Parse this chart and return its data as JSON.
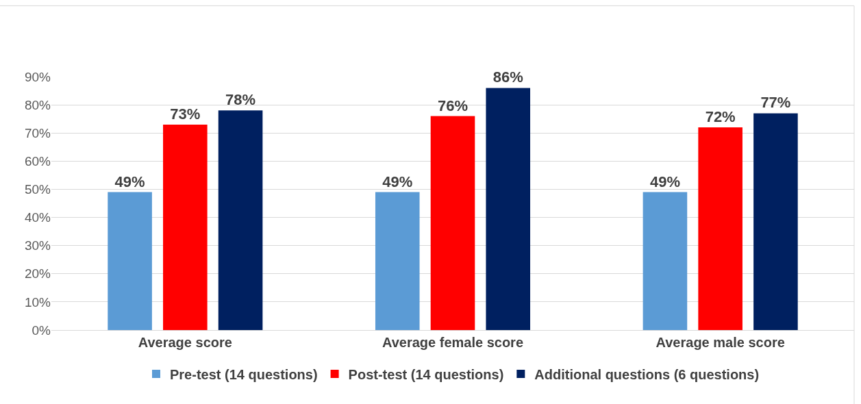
{
  "chart_data": {
    "type": "bar",
    "categories": [
      "Average score",
      "Average female score",
      "Average male score"
    ],
    "series": [
      {
        "name": "Pre-test (14 questions)",
        "color": "#5b9bd5",
        "values": [
          49,
          49,
          49
        ],
        "value_labels": [
          "49%",
          "49%",
          "49%"
        ]
      },
      {
        "name": "Post-test (14 questions)",
        "color": "#ff0000",
        "values": [
          73,
          76,
          72
        ],
        "value_labels": [
          "73%",
          "76%",
          "72%"
        ]
      },
      {
        "name": "Additional questions (6 questions)",
        "color": "#002060",
        "values": [
          78,
          86,
          77
        ],
        "value_labels": [
          "78%",
          "86%",
          "77%"
        ]
      }
    ],
    "ylim": [
      0,
      90
    ],
    "yticks": [
      {
        "value": 0,
        "label": "0%"
      },
      {
        "value": 10,
        "label": "10%"
      },
      {
        "value": 20,
        "label": "20%"
      },
      {
        "value": 30,
        "label": "30%"
      },
      {
        "value": 40,
        "label": "40%"
      },
      {
        "value": 50,
        "label": "50%"
      },
      {
        "value": 60,
        "label": "60%"
      },
      {
        "value": 70,
        "label": "70%"
      },
      {
        "value": 80,
        "label": "80%"
      },
      {
        "value": 90,
        "label": "90%"
      }
    ],
    "grid": "y",
    "legend": "bottom"
  }
}
